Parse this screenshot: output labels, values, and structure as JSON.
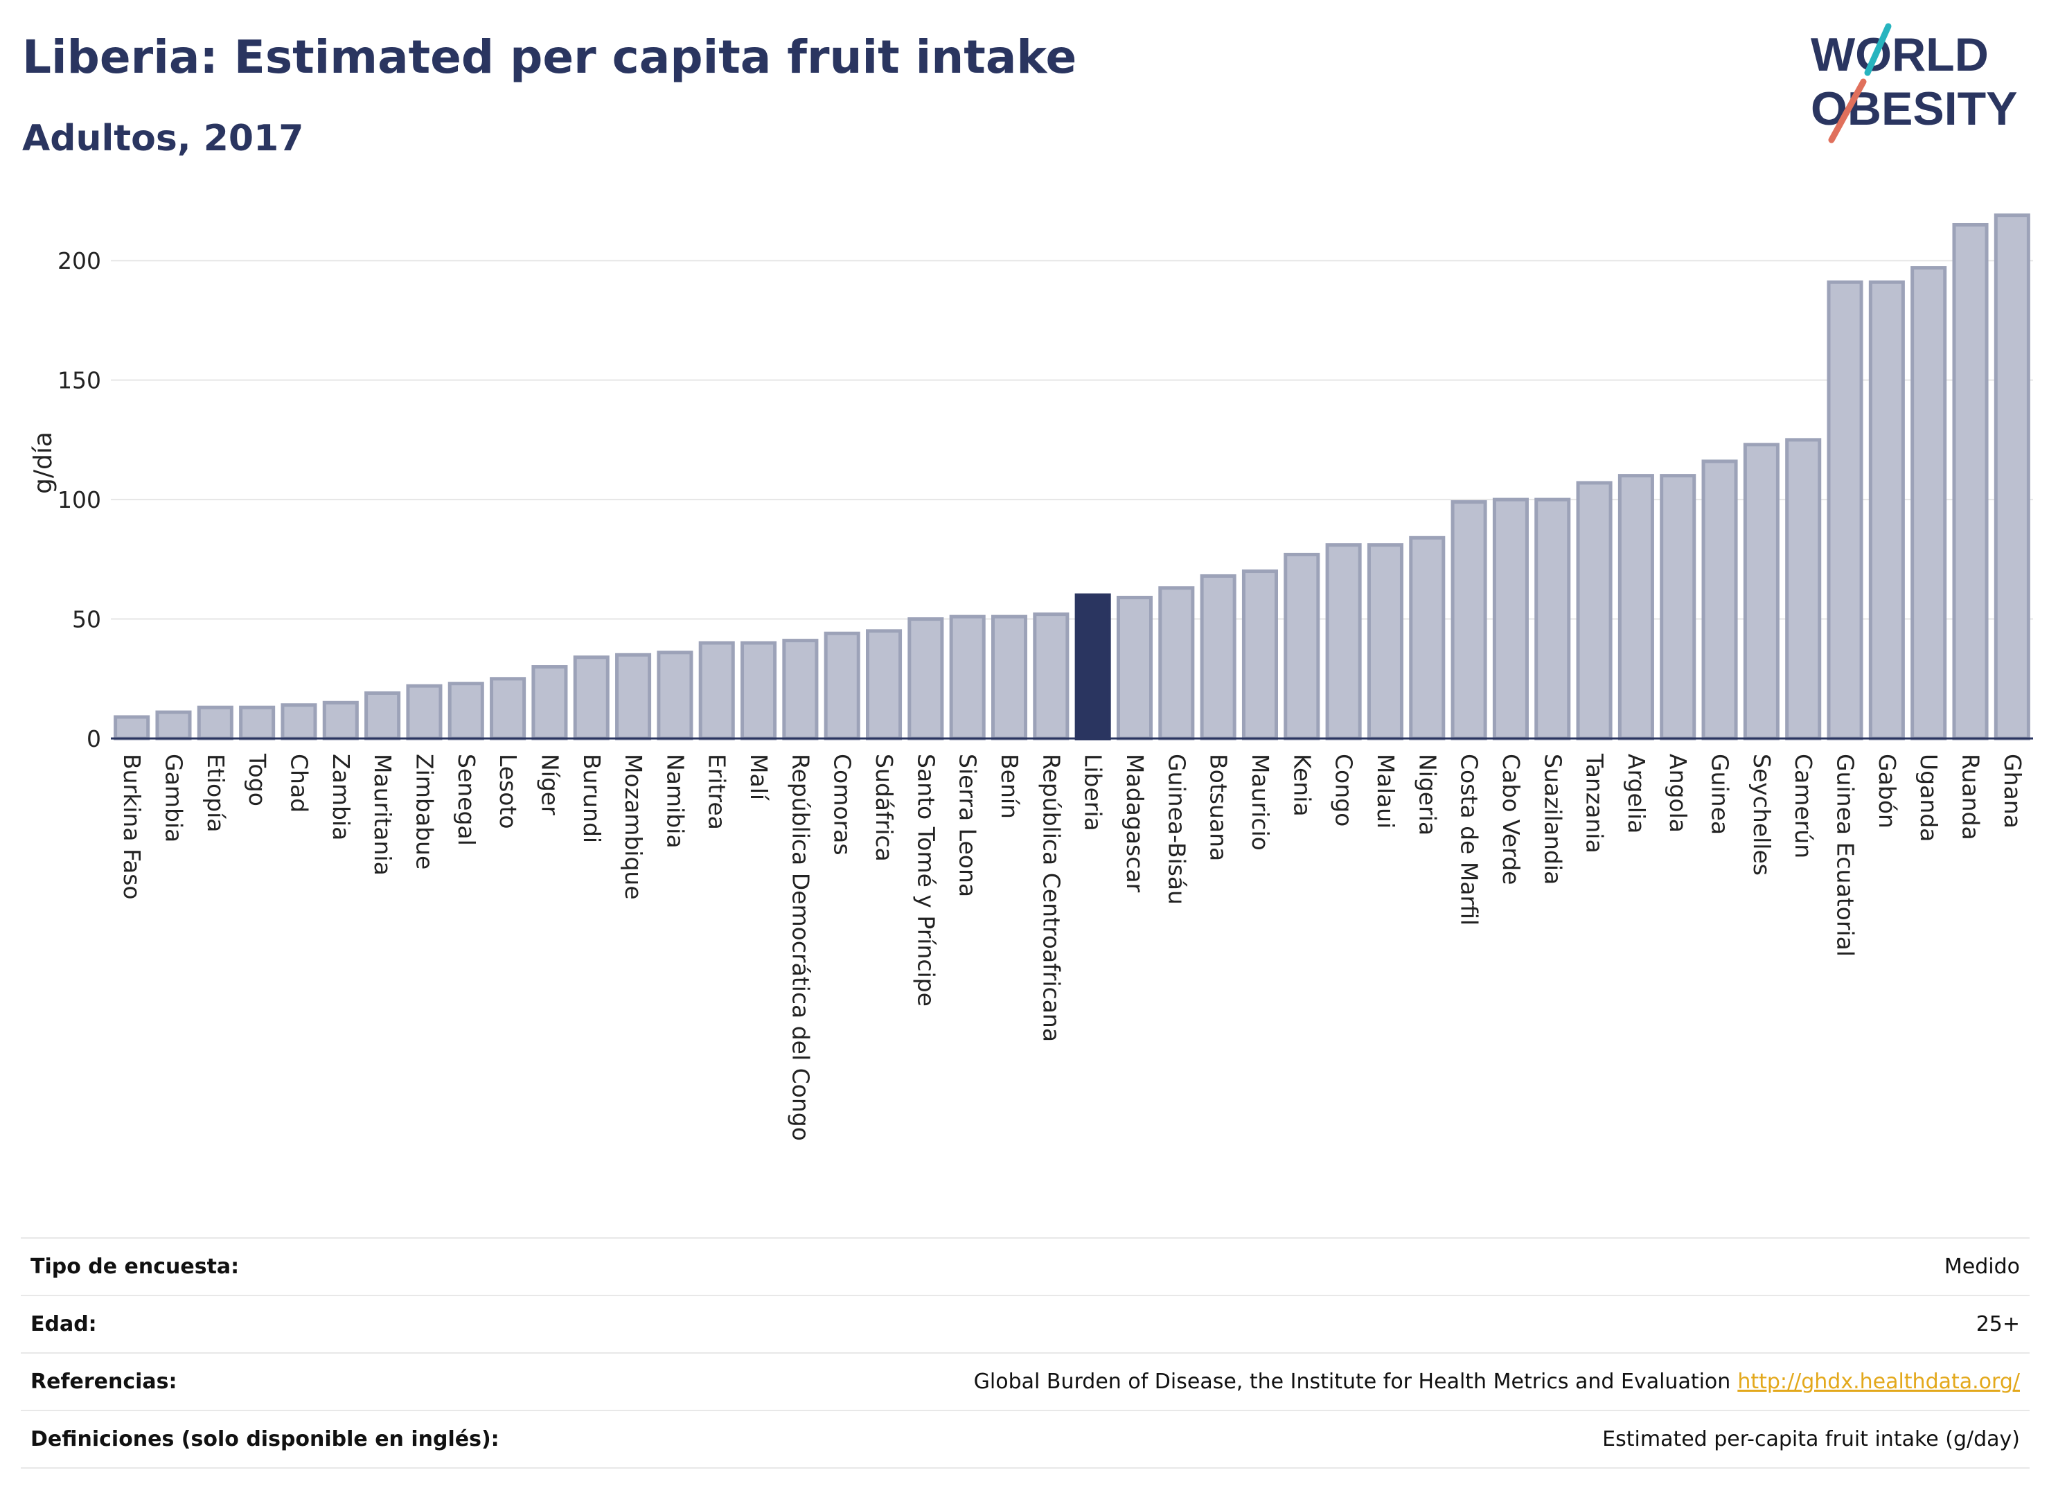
{
  "header": {
    "title": "Liberia: Estimated per capita fruit intake",
    "subtitle": "Adultos, 2017"
  },
  "logo": {
    "line1": "WORLD",
    "line2": "OBESITY"
  },
  "colors": {
    "bar": "#bcc0d0",
    "bar_stroke": "#9ca2b8",
    "highlight": "#2a3560",
    "grid": "#e6e6e6",
    "title": "#2a3560",
    "link": "#e3a81b",
    "logo_teal": "#27b4bf",
    "logo_coral": "#e0705c"
  },
  "chart_data": {
    "type": "bar",
    "title": "Liberia: Estimated per capita fruit intake",
    "subtitle": "Adultos, 2017",
    "ylabel": "g/día",
    "xlabel": "",
    "ylim": [
      0,
      225
    ],
    "yticks": [
      0,
      50,
      100,
      150,
      200
    ],
    "grid": true,
    "highlight": "Liberia",
    "categories": [
      "Burkina Faso",
      "Gambia",
      "Etiopía",
      "Togo",
      "Chad",
      "Zambia",
      "Mauritania",
      "Zimbabue",
      "Senegal",
      "Lesoto",
      "Níger",
      "Burundi",
      "Mozambique",
      "Namibia",
      "Eritrea",
      "Malí",
      "República Democrática del Congo",
      "Comoras",
      "Sudáfrica",
      "Santo Tomé y Príncipe",
      "Sierra Leona",
      "Benín",
      "República Centroafricana",
      "Liberia",
      "Madagascar",
      "Guinea-Bisáu",
      "Botsuana",
      "Mauricio",
      "Kenia",
      "Congo",
      "Malaui",
      "Nigeria",
      "Costa de Marfil",
      "Cabo Verde",
      "Suazilandia",
      "Tanzania",
      "Argelia",
      "Angola",
      "Guinea",
      "Seychelles",
      "Camerún",
      "Guinea Ecuatorial",
      "Gabón",
      "Uganda",
      "Ruanda",
      "Ghana"
    ],
    "values": [
      9,
      11,
      13,
      13,
      14,
      15,
      19,
      22,
      23,
      25,
      30,
      34,
      35,
      36,
      40,
      40,
      41,
      44,
      45,
      50,
      51,
      51,
      52,
      60,
      59,
      63,
      68,
      70,
      77,
      81,
      81,
      84,
      99,
      100,
      100,
      107,
      110,
      110,
      116,
      123,
      125,
      191,
      191,
      197,
      215,
      219
    ]
  },
  "info": {
    "rows": [
      {
        "label": "Tipo de encuesta:",
        "value": "Medido"
      },
      {
        "label": "Edad:",
        "value": "25+"
      },
      {
        "label": "Referencias:",
        "value": "Global Burden of Disease, the Institute for Health Metrics and Evaluation",
        "link": "http://ghdx.healthdata.org/"
      },
      {
        "label": "Definiciones (solo disponible en inglés):",
        "value": "Estimated per-capita fruit intake (g/day)"
      }
    ]
  }
}
